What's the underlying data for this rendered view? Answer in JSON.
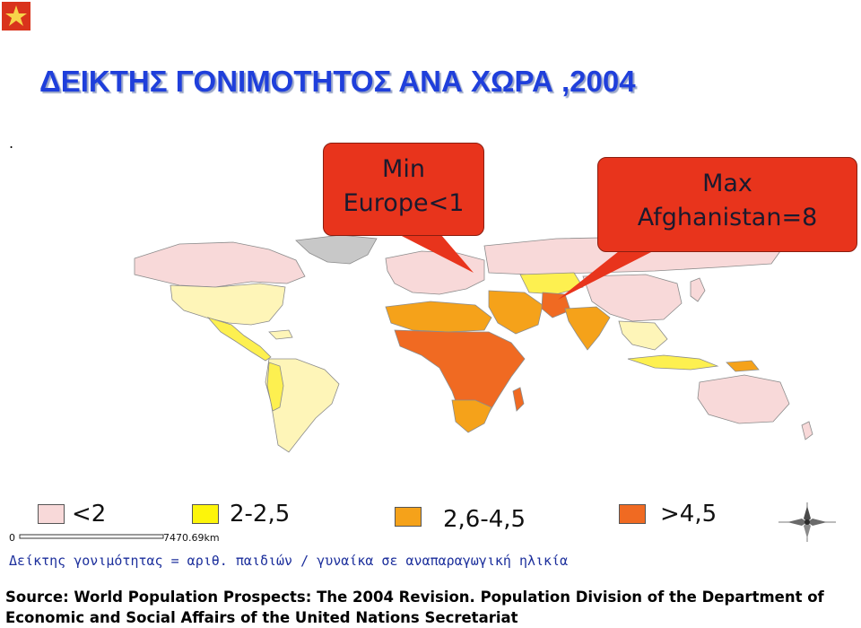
{
  "title": "ΔΕΙΚΤΗΣ ΓΟΝΙΜΟΤΗΤΟΣ ΑΝΑ ΧΩΡΑ ,2004",
  "dot": ".",
  "callouts": {
    "min": {
      "line1": "Min",
      "line2": "Europe<1"
    },
    "max": {
      "line1": "Max",
      "line2": "Afghanistan=8"
    }
  },
  "legend": [
    {
      "label": "<2",
      "color": "#f8d9d9"
    },
    {
      "label": "2-2,5",
      "color": "#fdf50a"
    },
    {
      "label": "2,6-4,5",
      "color": "#f5a21a"
    },
    {
      "label": ">4,5",
      "color": "#f06a22"
    }
  ],
  "scale": {
    "start": "0",
    "end": "7470.69km"
  },
  "caption": "Δείκτης γονιμότητας = αριθ. παιδιών / γυναίκα σε αναπαραγωγική ηλικία",
  "source": "Source: World Population Prospects: The 2004 Revision. Population Division of the Department of Economic and Social Affairs of the United Nations Secretariat",
  "colors": {
    "title": "#1f3fdb",
    "callout": "#e8341c",
    "no_data": "#c8c8c8",
    "low": "#f8d9d9",
    "lowmid": "#fef5b8",
    "mid": "#fdf050",
    "high": "#f5a21a",
    "veryhigh": "#f06a22"
  },
  "icons": {
    "logo": "star-logo-icon",
    "compass": "compass-rose-icon"
  }
}
